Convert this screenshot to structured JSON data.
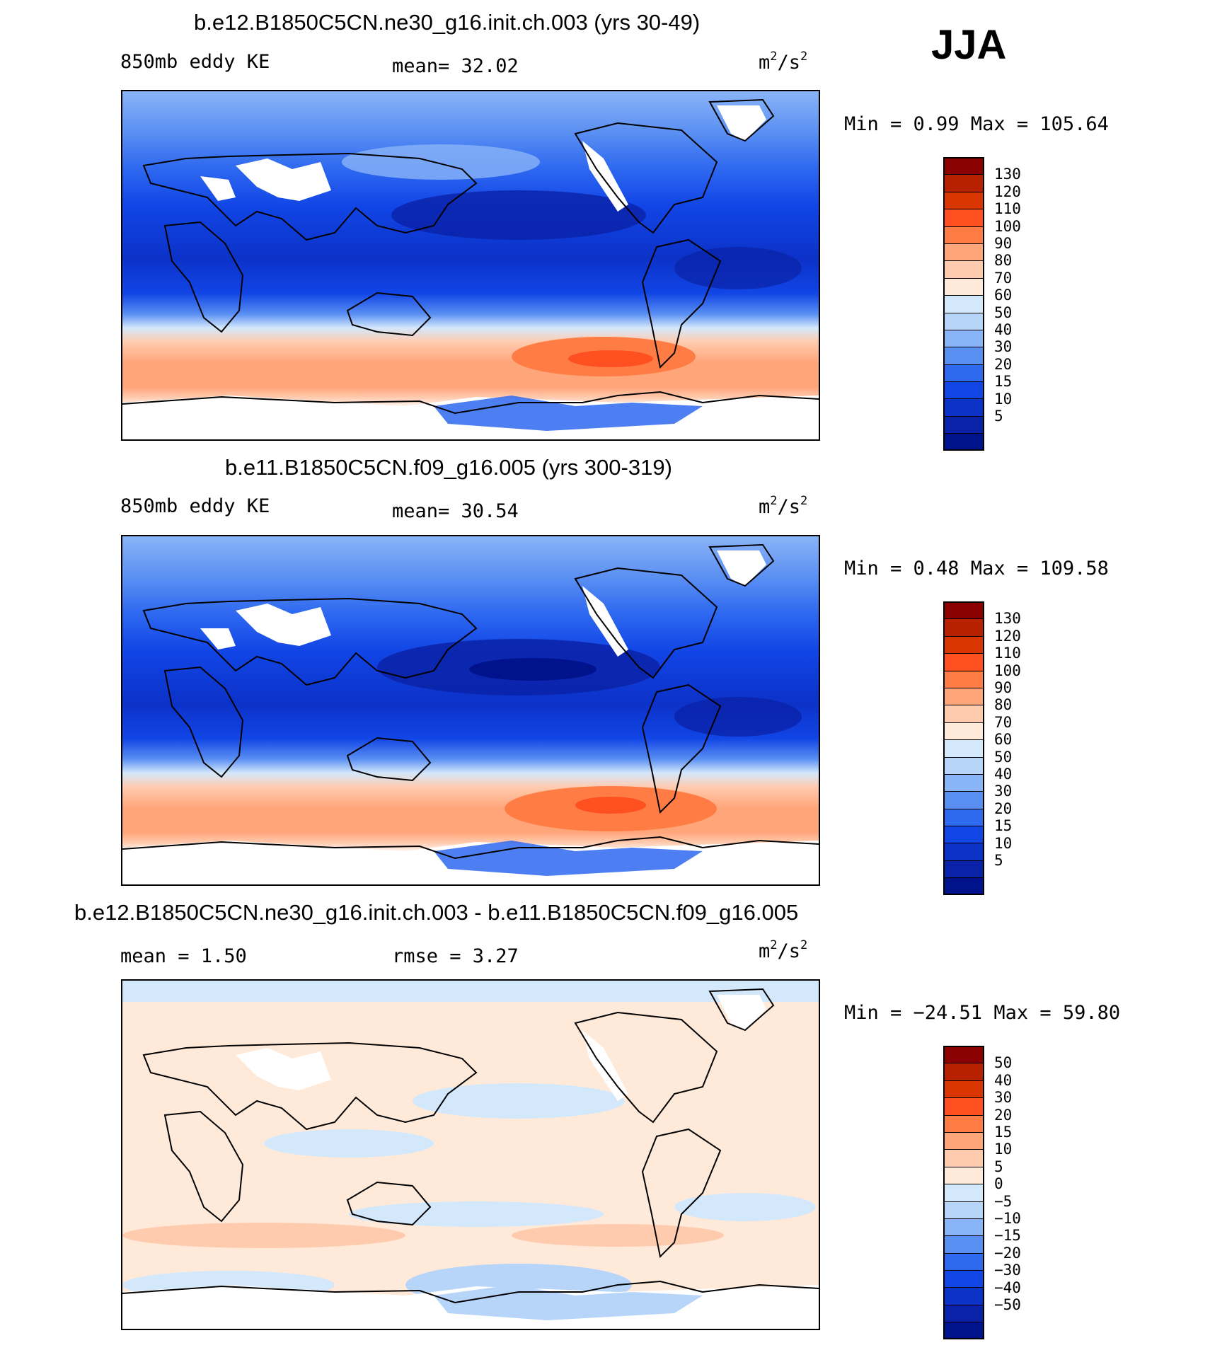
{
  "season": "JJA",
  "panels": [
    {
      "title": "b.e12.B1850C5CN.ne30_g16.init.ch.003 (yrs 30-49)",
      "left_label": "850mb eddy KE",
      "mean_text": "mean=  32.02",
      "units_base": "m",
      "units_mid": "/s",
      "units_exp": "2",
      "minmax_text": "Min =    0.99 Max = 105.64",
      "colorbar": {
        "colors": [
          "#8b0000",
          "#b82100",
          "#d83500",
          "#fe5020",
          "#ff7d44",
          "#ffa57a",
          "#ffcbaf",
          "#ffeada",
          "#d4e8fc",
          "#b7d5f9",
          "#8ab4f8",
          "#5a8ff2",
          "#2f69f0",
          "#1145e6",
          "#0c32c8",
          "#0a22a7",
          "#00138d"
        ],
        "ticks": [
          "130",
          "120",
          "110",
          "100",
          "90",
          "80",
          "70",
          "60",
          "50",
          "40",
          "30",
          "20",
          "15",
          "10",
          "5"
        ]
      }
    },
    {
      "title": "b.e11.B1850C5CN.f09_g16.005 (yrs 300-319)",
      "left_label": "850mb eddy KE",
      "mean_text": "mean=  30.54",
      "units_base": "m",
      "units_mid": "/s",
      "units_exp": "2",
      "minmax_text": "Min =    0.48 Max = 109.58",
      "colorbar": {
        "colors": [
          "#8b0000",
          "#b82100",
          "#d83500",
          "#fe5020",
          "#ff7d44",
          "#ffa57a",
          "#ffcbaf",
          "#ffeada",
          "#d4e8fc",
          "#b7d5f9",
          "#8ab4f8",
          "#5a8ff2",
          "#2f69f0",
          "#1145e6",
          "#0c32c8",
          "#0a22a7",
          "#00138d"
        ],
        "ticks": [
          "130",
          "120",
          "110",
          "100",
          "90",
          "80",
          "70",
          "60",
          "50",
          "40",
          "30",
          "20",
          "15",
          "10",
          "5"
        ]
      }
    },
    {
      "title": "b.e12.B1850C5CN.ne30_g16.init.ch.003 - b.e11.B1850C5CN.f09_g16.005",
      "left_label": "mean =   1.50",
      "mean_text": "rmse =   3.27",
      "units_base": "m",
      "units_mid": "/s",
      "units_exp": "2",
      "minmax_text": "Min = −24.51 Max =  59.80",
      "colorbar": {
        "colors": [
          "#8b0000",
          "#b82100",
          "#d83500",
          "#fe5020",
          "#ff7d44",
          "#ffa57a",
          "#ffcbaf",
          "#ffeada",
          "#d4e8fc",
          "#b7d5f9",
          "#8ab4f8",
          "#5a8ff2",
          "#2f69f0",
          "#1145e6",
          "#0c32c8",
          "#0a22a7",
          "#00138d"
        ],
        "ticks": [
          "50",
          "40",
          "30",
          "20",
          "15",
          "10",
          "5",
          "0",
          "−5",
          "−10",
          "−15",
          "−20",
          "−30",
          "−40",
          "−50"
        ]
      }
    }
  ]
}
